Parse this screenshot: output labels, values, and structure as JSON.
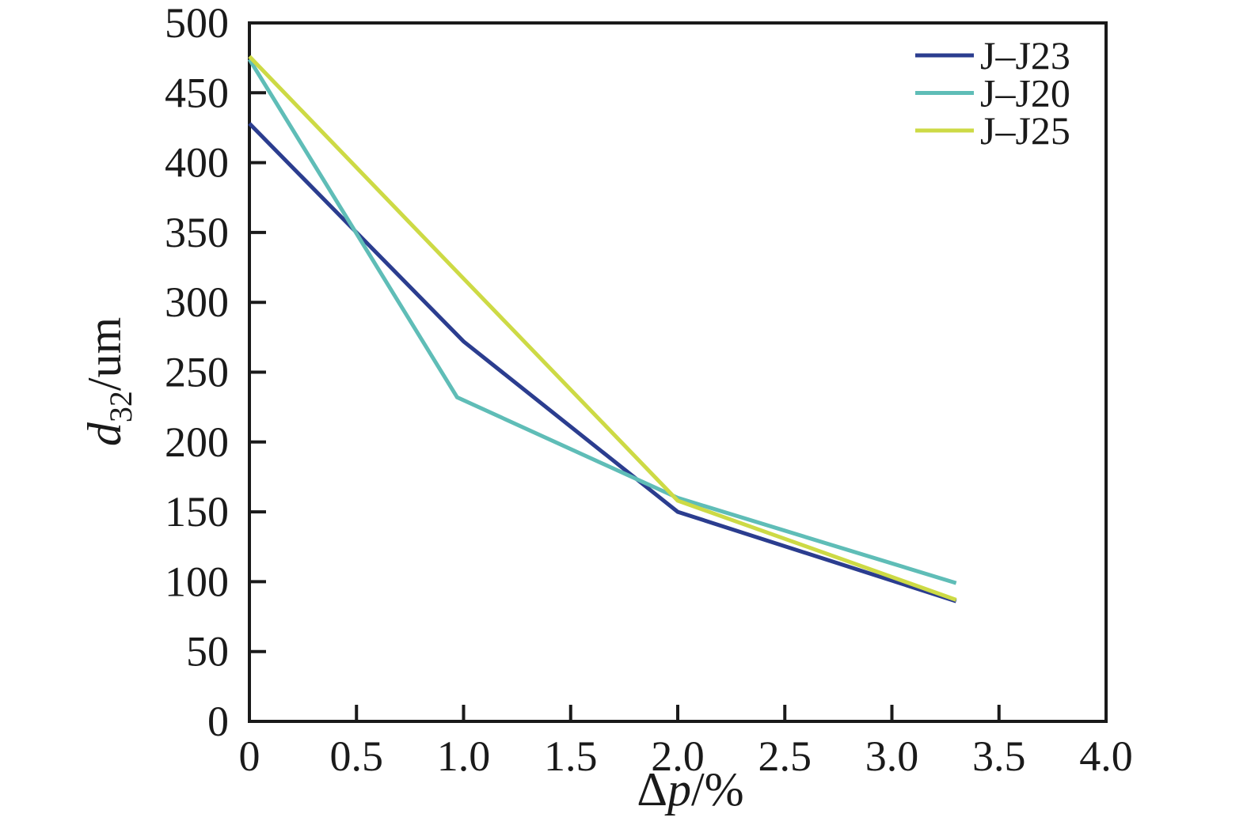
{
  "chart_data": {
    "type": "line",
    "title": "",
    "xlabel_parts": {
      "prefix": "Δ",
      "italic": "p",
      "suffix": "/%"
    },
    "ylabel_parts": {
      "italic": "d",
      "subscript": "32",
      "suffix": "/um"
    },
    "xlim": [
      0,
      4.0
    ],
    "ylim": [
      0,
      500
    ],
    "x_ticks": [
      0,
      0.5,
      1.0,
      1.5,
      2.0,
      2.5,
      3.0,
      3.5,
      4.0
    ],
    "x_tick_labels": [
      "0",
      "0.5",
      "1.0",
      "1.5",
      "2.0",
      "2.5",
      "3.0",
      "3.5",
      "4.0"
    ],
    "y_ticks": [
      0,
      50,
      100,
      150,
      200,
      250,
      300,
      350,
      400,
      450,
      500
    ],
    "y_tick_labels": [
      "0",
      "50",
      "100",
      "150",
      "200",
      "250",
      "300",
      "350",
      "400",
      "450",
      "500"
    ],
    "grid": false,
    "legend_position": "top-right-inside",
    "axis_color": "#1a1a1a",
    "background": "#ffffff",
    "series": [
      {
        "name": "J–J23",
        "color": "#2b3d8f",
        "points": [
          [
            0,
            428
          ],
          [
            1.0,
            272
          ],
          [
            2.0,
            150
          ],
          [
            3.3,
            86
          ]
        ]
      },
      {
        "name": "J–J20",
        "color": "#5fbdb7",
        "points": [
          [
            0,
            474
          ],
          [
            0.97,
            232
          ],
          [
            2.0,
            160
          ],
          [
            3.3,
            99
          ]
        ]
      },
      {
        "name": "J–J25",
        "color": "#cdda45",
        "points": [
          [
            0,
            476
          ],
          [
            1.0,
            317
          ],
          [
            2.0,
            158
          ],
          [
            3.3,
            87
          ]
        ]
      }
    ]
  }
}
